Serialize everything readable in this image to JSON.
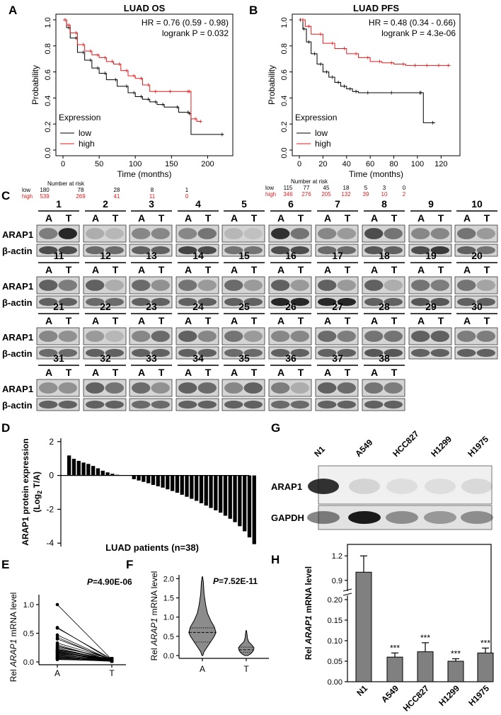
{
  "panel_letters": {
    "a": "A",
    "b": "B",
    "c": "C",
    "d": "D",
    "e": "E",
    "f": "F",
    "g": "G",
    "h": "H"
  },
  "panel_a": {
    "title": "LUAD OS",
    "hr": "HR = 0.76 (0.59 - 0.98)",
    "p": "logrank P = 0.032",
    "ylabel": "Probability",
    "xlabel": "Time (months)",
    "legend_title": "Expression",
    "legend_low": "low",
    "legend_high": "high",
    "risk_title": "Number at risk",
    "risk_low_label": "low",
    "risk_high_label": "high",
    "risk_low": [
      "180",
      "78",
      "28",
      "8",
      "1"
    ],
    "risk_high": [
      "539",
      "269",
      "41",
      "11",
      "0"
    ]
  },
  "panel_b": {
    "title": "LUAD PFS",
    "hr": "HR = 0.48 (0.34 - 0.66)",
    "p": "logrank P = 4.3e-06",
    "ylabel": "Probability",
    "xlabel": "Time (months)",
    "legend_title": "Expression",
    "legend_low": "low",
    "legend_high": "high",
    "risk_title": "Number at risk",
    "risk_low_label": "low",
    "risk_high_label": "high",
    "risk_low": [
      "115",
      "77",
      "45",
      "18",
      "5",
      "3",
      "0"
    ],
    "risk_high": [
      "346",
      "276",
      "205",
      "132",
      "39",
      "10",
      "2"
    ]
  },
  "panel_c": {
    "row_labels": {
      "target": "ARAP1",
      "control": "β-actin"
    },
    "lane_a": "A",
    "lane_t": "T",
    "samples": [
      "1",
      "2",
      "3",
      "4",
      "5",
      "6",
      "7",
      "8",
      "9",
      "10",
      "11",
      "12",
      "13",
      "14",
      "15",
      "16",
      "17",
      "18",
      "19",
      "20",
      "21",
      "22",
      "23",
      "24",
      "25",
      "26",
      "27",
      "28",
      "29",
      "30",
      "31",
      "32",
      "33",
      "34",
      "35",
      "36",
      "37",
      "38"
    ]
  },
  "panel_d": {
    "ylabel_line1": "ARAP1 protein expression",
    "ylabel_line2": "(Log",
    "ylabel_sub": "2",
    "ylabel_line2b": " T/A)",
    "xlabel": "LUAD patients (n=38)"
  },
  "panel_e": {
    "ylabel_pre": "Rel ",
    "ylabel_it": "ARAP1",
    "ylabel_post": " mRNA level",
    "p_it": "P",
    "p_val": "=4.90E-06",
    "cat_a": "A",
    "cat_t": "T"
  },
  "panel_f": {
    "ylabel_pre": "Rel ",
    "ylabel_it": "ARAP1",
    "ylabel_post": " mRNA level",
    "p_it": "P",
    "p_val": "=7.52E-11",
    "cat_a": "A",
    "cat_t": "T"
  },
  "panel_g": {
    "lanes": [
      "N1",
      "A549",
      "HCC827",
      "H1299",
      "H1975"
    ],
    "row1": "ARAP1",
    "row2": "GAPDH"
  },
  "panel_h": {
    "ylabel_pre": "Rel ",
    "ylabel_it": "ARAP1",
    "ylabel_post": " mRNA level",
    "stars": "***"
  },
  "chart_data": [
    {
      "id": "A",
      "type": "line",
      "title": "LUAD OS",
      "xlabel": "Time (months)",
      "ylabel": "Probability",
      "xlim": [
        0,
        225
      ],
      "ylim": [
        0,
        1
      ],
      "xticks": [
        0,
        50,
        100,
        150,
        200
      ],
      "yticks": [
        0.0,
        0.2,
        0.4,
        0.6,
        0.8,
        1.0
      ],
      "series": [
        {
          "name": "low",
          "color": "#000000",
          "x": [
            0,
            5,
            10,
            20,
            30,
            40,
            50,
            60,
            75,
            90,
            100,
            110,
            120,
            130,
            140,
            160,
            175,
            177,
            222
          ],
          "y": [
            1,
            0.94,
            0.86,
            0.75,
            0.69,
            0.63,
            0.59,
            0.54,
            0.49,
            0.44,
            0.41,
            0.39,
            0.37,
            0.35,
            0.33,
            0.29,
            0.28,
            0.12,
            0.12
          ]
        },
        {
          "name": "high",
          "color": "#e41a1c",
          "x": [
            0,
            5,
            10,
            20,
            30,
            40,
            50,
            60,
            70,
            80,
            90,
            100,
            110,
            120,
            130,
            150,
            175,
            177,
            185,
            192
          ],
          "y": [
            1,
            0.96,
            0.9,
            0.81,
            0.76,
            0.73,
            0.71,
            0.68,
            0.66,
            0.61,
            0.57,
            0.55,
            0.5,
            0.45,
            0.45,
            0.45,
            0.45,
            0.24,
            0.22,
            0.22
          ]
        }
      ]
    },
    {
      "id": "B",
      "type": "line",
      "title": "LUAD PFS",
      "xlabel": "Time (months)",
      "ylabel": "Probability",
      "xlim": [
        0,
        130
      ],
      "ylim": [
        0,
        1
      ],
      "xticks": [
        0,
        20,
        40,
        60,
        80,
        100,
        120
      ],
      "yticks": [
        0.0,
        0.2,
        0.4,
        0.6,
        0.8,
        1.0
      ],
      "series": [
        {
          "name": "low",
          "color": "#000000",
          "x": [
            0,
            3,
            6,
            10,
            15,
            20,
            25,
            30,
            35,
            40,
            45,
            50,
            60,
            80,
            104,
            105,
            115
          ],
          "y": [
            1,
            0.93,
            0.83,
            0.74,
            0.66,
            0.6,
            0.56,
            0.52,
            0.49,
            0.47,
            0.45,
            0.44,
            0.44,
            0.44,
            0.44,
            0.21,
            0.21
          ]
        },
        {
          "name": "high",
          "color": "#e41a1c",
          "x": [
            0,
            5,
            10,
            20,
            30,
            40,
            50,
            60,
            70,
            80,
            90,
            100,
            110,
            120,
            128
          ],
          "y": [
            1,
            0.95,
            0.89,
            0.82,
            0.78,
            0.74,
            0.71,
            0.68,
            0.67,
            0.66,
            0.65,
            0.65,
            0.65,
            0.65,
            0.65
          ]
        }
      ]
    },
    {
      "id": "D",
      "type": "bar",
      "xlabel": "LUAD patients (n=38)",
      "ylabel": "ARAP1 protein expression (Log2 T/A)",
      "ylim": [
        -4.2,
        2.2
      ],
      "yticks": [
        -4,
        -2,
        0,
        2
      ],
      "values": [
        1.18,
        0.98,
        0.86,
        0.76,
        0.68,
        0.56,
        0.42,
        0.28,
        0.18,
        0.1,
        0.04,
        0.01,
        -0.22,
        -0.3,
        -0.38,
        -0.46,
        -0.56,
        -0.64,
        -0.72,
        -0.82,
        -0.92,
        -1.02,
        -1.14,
        -1.26,
        -1.38,
        -1.5,
        -1.64,
        -1.78,
        -1.92,
        -2.06,
        -2.2,
        -2.38,
        -2.56,
        -2.76,
        -3.0,
        -3.3,
        -3.66,
        -4.06
      ]
    },
    {
      "id": "E",
      "type": "line",
      "ylabel": "Rel ARAP1 mRNA level",
      "categories": [
        "A",
        "T"
      ],
      "ylim": [
        0,
        1.05
      ],
      "yticks": [
        0.0,
        0.5,
        1.0
      ],
      "pairs": [
        [
          1.0,
          0.04
        ],
        [
          0.6,
          0.03
        ],
        [
          0.59,
          0.05
        ],
        [
          0.47,
          0.03
        ],
        [
          0.43,
          0.02
        ],
        [
          0.4,
          0.04
        ],
        [
          0.33,
          0.05
        ],
        [
          0.3,
          0.02
        ],
        [
          0.28,
          0.03
        ],
        [
          0.26,
          0.06
        ],
        [
          0.24,
          0.02
        ],
        [
          0.22,
          0.04
        ],
        [
          0.21,
          0.03
        ],
        [
          0.2,
          0.05
        ],
        [
          0.19,
          0.02
        ],
        [
          0.18,
          0.03
        ],
        [
          0.17,
          0.04
        ],
        [
          0.16,
          0.02
        ],
        [
          0.15,
          0.03
        ],
        [
          0.14,
          0.05
        ],
        [
          0.13,
          0.02
        ],
        [
          0.12,
          0.03
        ],
        [
          0.11,
          0.04
        ],
        [
          0.1,
          0.02
        ],
        [
          0.09,
          0.03
        ],
        [
          0.08,
          0.02
        ],
        [
          0.07,
          0.03
        ],
        [
          0.06,
          0.02
        ],
        [
          0.05,
          0.01
        ],
        [
          0.04,
          0.02
        ]
      ]
    },
    {
      "id": "F",
      "type": "violin",
      "ylabel": "Rel ARAP1 mRNA level",
      "categories": [
        "A",
        "T"
      ],
      "ylim": [
        0,
        2.1
      ],
      "yticks": [
        0.0,
        0.5,
        1.0,
        1.5,
        2.0
      ],
      "series": [
        {
          "name": "A",
          "median": 0.6,
          "q1": 0.35,
          "q3": 0.72,
          "min": 0.0,
          "max": 2.05
        },
        {
          "name": "T",
          "median": 0.15,
          "q1": 0.08,
          "q3": 0.22,
          "min": 0.0,
          "max": 0.65
        }
      ]
    },
    {
      "id": "H",
      "type": "bar",
      "ylabel": "Rel ARAP1 mRNA level",
      "categories": [
        "N1",
        "A549",
        "HCC827",
        "H1299",
        "H1975"
      ],
      "values": [
        1.0,
        0.06,
        0.073,
        0.05,
        0.07
      ],
      "errors": [
        0.2,
        0.01,
        0.022,
        0.006,
        0.012
      ],
      "significance": [
        "",
        "***",
        "***",
        "***",
        "***"
      ],
      "yticks_lower": [
        0.0,
        0.05,
        0.1,
        0.15,
        0.2
      ],
      "yticks_upper": [
        0.9,
        1.2
      ]
    }
  ]
}
